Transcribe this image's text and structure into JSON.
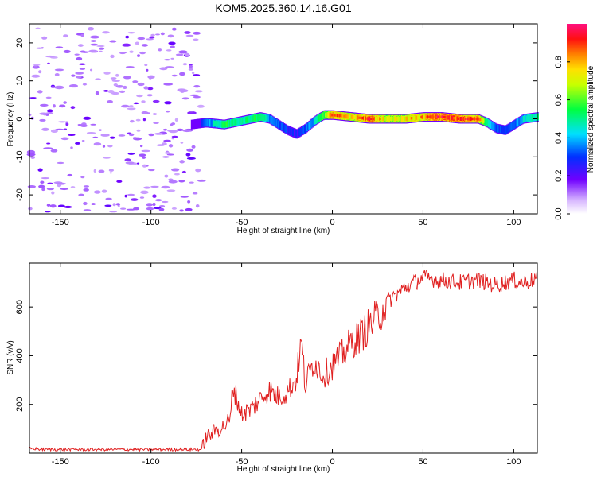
{
  "title": "KOM5.2025.360.14.16.G01",
  "chart_data": [
    {
      "type": "heatmap",
      "xlabel": "Height of straight line (km)",
      "ylabel": "Frequency (Hz)",
      "xlim": [
        -167,
        113
      ],
      "ylim": [
        -25,
        25
      ],
      "xticks": [
        -150,
        -100,
        -50,
        0,
        50,
        100
      ],
      "yticks": [
        -20,
        -10,
        0,
        10,
        20
      ],
      "xtick_labels": [
        "-150",
        "-100",
        "-50",
        "0",
        "50",
        "100"
      ],
      "ytick_labels": [
        "-20",
        "-10",
        "0",
        "10",
        "20"
      ],
      "colorbar": {
        "label": "Normalized spectral amplitude",
        "range": [
          0,
          1
        ],
        "ticks": [
          0.0,
          0.2,
          0.4,
          0.6,
          0.8
        ],
        "tick_labels": [
          "0.0",
          "0.2",
          "0.4",
          "0.6",
          "0.8"
        ],
        "colormap": "rainbow"
      },
      "noise_region_x": [
        -167,
        -78
      ],
      "ridge": {
        "x": [
          -78,
          -70,
          -60,
          -50,
          -40,
          -35,
          -30,
          -25,
          -20,
          -15,
          -10,
          -5,
          0,
          10,
          20,
          30,
          40,
          50,
          60,
          70,
          80,
          85,
          90,
          95,
          100,
          105,
          113
        ],
        "frequency": [
          -1.5,
          -1,
          -1.5,
          -0.5,
          0.5,
          0,
          -1.5,
          -3,
          -4,
          -2.5,
          -0.5,
          1,
          1,
          0.5,
          0,
          0,
          0,
          0.5,
          0.5,
          0,
          0,
          -1,
          -2.5,
          -3,
          -1.5,
          0,
          0.5
        ],
        "amplitude": [
          0.15,
          0.35,
          0.55,
          0.5,
          0.55,
          0.4,
          0.35,
          0.3,
          0.25,
          0.35,
          0.45,
          0.65,
          0.85,
          0.75,
          0.9,
          0.7,
          0.75,
          0.8,
          0.95,
          0.9,
          0.85,
          0.5,
          0.35,
          0.3,
          0.35,
          0.45,
          0.5
        ]
      }
    },
    {
      "type": "line",
      "xlabel": "Height of straight line (km)",
      "ylabel": "SNR (v/v)",
      "xlim": [
        -167,
        113
      ],
      "ylim": [
        0,
        780
      ],
      "xticks": [
        -150,
        -100,
        -50,
        0,
        50,
        100
      ],
      "yticks": [
        200,
        400,
        600
      ],
      "xtick_labels": [
        "-150",
        "-100",
        "-50",
        "0",
        "50",
        "100"
      ],
      "ytick_labels": [
        "200",
        "400",
        "600"
      ],
      "color": "#e02020",
      "series": [
        {
          "name": "SNR",
          "x": [
            -167,
            -160,
            -150,
            -140,
            -130,
            -120,
            -110,
            -100,
            -90,
            -80,
            -72,
            -70,
            -65,
            -60,
            -56,
            -55,
            -50,
            -45,
            -40,
            -35,
            -30,
            -25,
            -20,
            -17,
            -15,
            -10,
            -5,
            0,
            5,
            10,
            15,
            20,
            25,
            30,
            40,
            50,
            60,
            70,
            80,
            90,
            100,
            105,
            110,
            113
          ],
          "y": [
            20,
            15,
            15,
            15,
            15,
            15,
            15,
            15,
            15,
            15,
            15,
            60,
            90,
            110,
            140,
            280,
            160,
            180,
            220,
            260,
            230,
            250,
            300,
            460,
            280,
            380,
            320,
            360,
            400,
            450,
            480,
            520,
            560,
            620,
            680,
            720,
            710,
            700,
            710,
            690,
            710,
            700,
            710,
            720
          ]
        }
      ]
    }
  ]
}
